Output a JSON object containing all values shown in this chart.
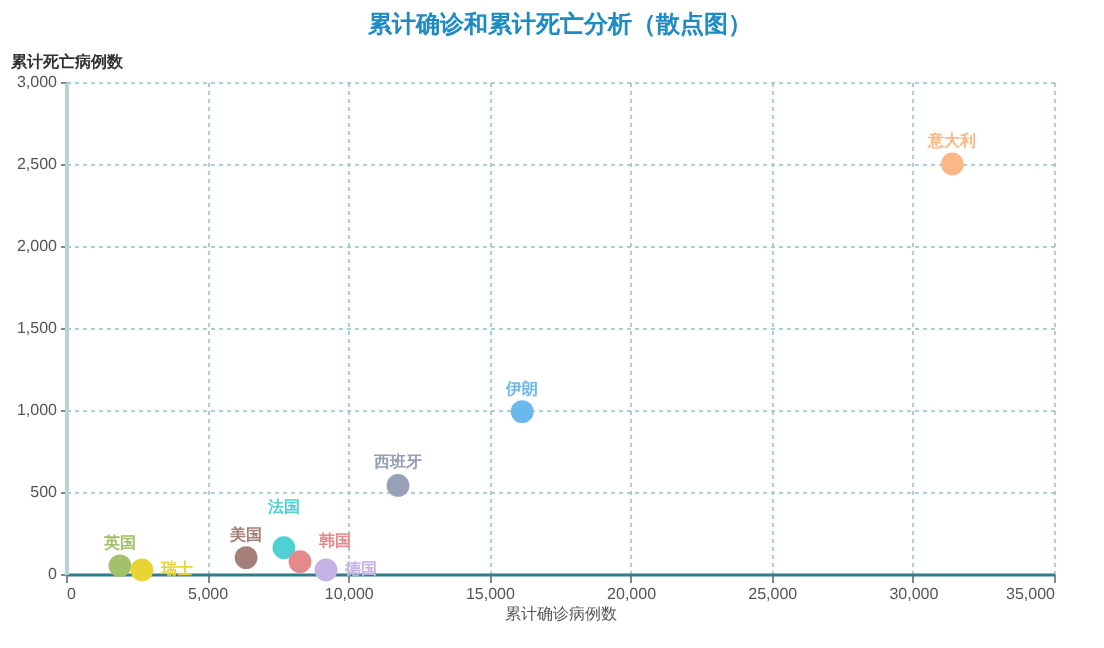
{
  "chart_data": {
    "type": "scatter",
    "title": "累计确诊和累计死亡分析（散点图）",
    "xlabel": "累计确诊病例数",
    "ylabel": "累计死亡病例数",
    "xlim": [
      0,
      35000
    ],
    "xticks": [
      {
        "value": 0,
        "label": "0"
      },
      {
        "value": 5000,
        "label": "5,000"
      },
      {
        "value": 10000,
        "label": "10,000"
      },
      {
        "value": 15000,
        "label": "15,000"
      },
      {
        "value": 20000,
        "label": "20,000"
      },
      {
        "value": 25000,
        "label": "25,000"
      },
      {
        "value": 30000,
        "label": "30,000"
      },
      {
        "value": 35000,
        "label": "35,000"
      }
    ],
    "ylim": [
      0,
      3000
    ],
    "yticks": [
      {
        "value": 0,
        "label": "0"
      },
      {
        "value": 500,
        "label": "500"
      },
      {
        "value": 1000,
        "label": "1,000"
      },
      {
        "value": 1500,
        "label": "1,500"
      },
      {
        "value": 2000,
        "label": "2,000"
      },
      {
        "value": 2500,
        "label": "2,500"
      },
      {
        "value": 3000,
        "label": "3,000"
      }
    ],
    "grid": true,
    "marker": "circle",
    "legend": false,
    "series": [
      {
        "name": "英国",
        "color": "#a3c06a",
        "x": [
          1910
        ],
        "values": [
          50
        ]
      },
      {
        "name": "瑞士",
        "color": "#e8d535",
        "x": [
          2690
        ],
        "values": [
          25
        ]
      },
      {
        "name": "美国",
        "color": "#a58079",
        "x": [
          6380
        ],
        "values": [
          100
        ]
      },
      {
        "name": "法国",
        "color": "#4fd0d3",
        "x": [
          7720
        ],
        "values": [
          160
        ]
      },
      {
        "name": "韩国",
        "color": "#e58a8c",
        "x": [
          8290
        ],
        "values": [
          75
        ]
      },
      {
        "name": "德国",
        "color": "#c6b3e6",
        "x": [
          9210
        ],
        "values": [
          25
        ]
      },
      {
        "name": "西班牙",
        "color": "#98a0b8",
        "x": [
          11760
        ],
        "values": [
          540
        ]
      },
      {
        "name": "伊朗",
        "color": "#6ab8ee",
        "x": [
          16160
        ],
        "values": [
          990
        ]
      },
      {
        "name": "意大利",
        "color": "#fbb785",
        "x": [
          31400
        ],
        "values": [
          2500
        ]
      }
    ]
  }
}
